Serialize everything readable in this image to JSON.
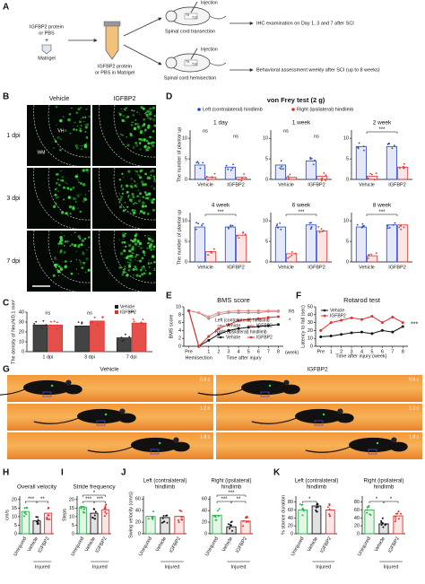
{
  "panel_labels": [
    "A",
    "B",
    "C",
    "D",
    "E",
    "F",
    "G",
    "H",
    "I",
    "J",
    "K"
  ],
  "schematic": {
    "protein_lines": [
      "IGFBP2 protein",
      "or PBS"
    ],
    "plus": "+",
    "matrigel": "Matrigel",
    "mix_lines": [
      "IGFBP2 protein",
      "or PBS in Matrigel"
    ],
    "injection": "Injection",
    "vertebrae": [
      "T9",
      "T10"
    ],
    "procedures": [
      "Spinal cord transection",
      "Spinal cord hemisection"
    ],
    "outcomes": [
      "IHC examination on Day 1, 3 and 7 after SCI",
      "Behavioral assessment weekly after SCI (up to 8 weeks)"
    ]
  },
  "images_b": {
    "columns": [
      "Vehicle",
      "IGFBP2"
    ],
    "rows": [
      "1 dpi",
      "3 dpi",
      "7 dpi"
    ],
    "regions": [
      "VH",
      "WM"
    ]
  },
  "images_g": {
    "columns": [
      "Vehicle",
      "IGFBP2"
    ],
    "times": [
      "0.6 s",
      "1.2 s",
      "1.8 s"
    ]
  },
  "chart_data": [
    {
      "type": "bar",
      "y_label": "The density of NeuN/0.1 mm²",
      "categories": [
        "1 dpi",
        "3 dpi",
        "7 dpi"
      ],
      "series": [
        {
          "name": "Vehicle",
          "color": "#222222",
          "values": [
            27,
            26,
            14
          ]
        },
        {
          "name": "IGFBP2",
          "color": "#e0302a",
          "values": [
            27,
            31,
            29
          ]
        }
      ],
      "ylim": [
        0,
        40
      ],
      "yticks": [
        0,
        10,
        20,
        30,
        40
      ],
      "annotations": [
        "ns",
        "ns",
        "***"
      ]
    },
    {
      "type": "bar",
      "title": "von Frey test (2 g)",
      "y_label": "The number of plantar up",
      "categories": [
        "Vehicle",
        "IGFBP2"
      ],
      "series": [
        {
          "name": "Left (contralateral) hindlimb",
          "color": "#2444c8"
        },
        {
          "name": "Right (ipsilateral) hindlimb",
          "color": "#e0302a"
        }
      ],
      "ylim": [
        0,
        12
      ],
      "yticks": [
        0,
        5,
        10
      ],
      "subplots": [
        {
          "title": "1 day",
          "values": [
            [
              3.5,
              3
            ],
            [
              0.5,
              0.5
            ]
          ],
          "annotations": [
            "ns",
            "ns"
          ]
        },
        {
          "title": "1 week",
          "values": [
            [
              3.5,
              4.5
            ],
            [
              0.5,
              0.8
            ]
          ],
          "annotations": [
            "ns",
            "ns"
          ]
        },
        {
          "title": "2 week",
          "values": [
            [
              8,
              8
            ],
            [
              0.8,
              3
            ]
          ],
          "annotations": [
            "***"
          ]
        },
        {
          "title": "4 week",
          "values": [
            [
              8.5,
              8.5
            ],
            [
              2.5,
              6.5
            ]
          ],
          "annotations": [
            "***"
          ]
        },
        {
          "title": "6 week",
          "values": [
            [
              8.5,
              9
            ],
            [
              2,
              7.5
            ]
          ],
          "annotations": [
            "***"
          ]
        },
        {
          "title": "8 week",
          "values": [
            [
              8.5,
              9
            ],
            [
              1.5,
              9
            ]
          ],
          "annotations": [
            "***"
          ]
        }
      ]
    },
    {
      "type": "line",
      "title": "BMS score",
      "y_label": "BMS score",
      "x_label": "Time after injury",
      "x_unit": "(week)",
      "x_annotation": "Hemisection",
      "categories": [
        "Pre",
        null,
        "1",
        "2",
        "3",
        "4",
        "5",
        "6",
        "7",
        "8"
      ],
      "legend_groups": [
        "Left (contralateral) hindlimb",
        "Right (ipsilateral) hindlimb"
      ],
      "series": [
        {
          "name": "Vehicle",
          "color": "#9a9a9a",
          "values": [
            9,
            8.5,
            7,
            8,
            8.5,
            8.5,
            8.5,
            8.5,
            8.8,
            8.8
          ]
        },
        {
          "name": "IGFBP2",
          "color": "#f08a8a",
          "values": [
            9,
            8.5,
            7.5,
            8.5,
            8.8,
            9,
            9,
            9,
            9,
            9
          ]
        },
        {
          "name": "Vehicle",
          "color": "#111111",
          "values": [
            9,
            0,
            1.5,
            3,
            4,
            4.5,
            4.8,
            5,
            5.2,
            5.5
          ]
        },
        {
          "name": "IGFBP2",
          "color": "#e0302a",
          "values": [
            9,
            0,
            2.5,
            4.5,
            5.5,
            6.5,
            6.8,
            7,
            7.3,
            7.5
          ]
        }
      ],
      "ylim": [
        0,
        10
      ],
      "yticks": [
        0,
        2,
        4,
        6,
        8,
        10
      ],
      "annotations": [
        "ns",
        "*"
      ]
    },
    {
      "type": "line",
      "title": "Rotarod test",
      "y_label": "Latency to fall (sec)",
      "x_label": "Time after injury (week)",
      "categories": [
        "Pre",
        "1",
        "2",
        "3",
        "4",
        "5",
        "6",
        "7",
        "8"
      ],
      "series": [
        {
          "name": "Vehicle",
          "color": "#111111",
          "values": [
            12,
            13,
            15,
            17,
            18,
            16,
            20,
            18,
            25
          ]
        },
        {
          "name": "IGFBP2",
          "color": "#e0302a",
          "values": [
            20,
            30,
            33,
            36,
            34,
            38,
            30,
            37,
            30
          ]
        }
      ],
      "ylim": [
        0,
        50
      ],
      "yticks": [
        0,
        10,
        20,
        30,
        40,
        50
      ],
      "annotations": [
        "***"
      ]
    },
    {
      "type": "bar",
      "title": "Overall velocity",
      "y_label": "cm/s",
      "categories": [
        "Uninjured",
        "Vehicle",
        "IGFBP2"
      ],
      "group_label": "Injured",
      "values": [
        13,
        7.5,
        12
      ],
      "colors": [
        "#2db34a",
        "#111111",
        "#e0302a"
      ],
      "ylim": [
        0,
        22
      ],
      "yticks": [
        0,
        5,
        10,
        15,
        20
      ],
      "annotations": [
        "***",
        "**"
      ]
    },
    {
      "type": "bar",
      "title": "Stride frequency",
      "y_label": "Steps",
      "categories": [
        "Uninjured",
        "Vehicle",
        "IGFBP2"
      ],
      "group_label": "Injured",
      "values": [
        15.5,
        12,
        14
      ],
      "colors": [
        "#2db34a",
        "#111111",
        "#e0302a"
      ],
      "ylim": [
        0,
        22
      ],
      "yticks": [
        0,
        5,
        10,
        15,
        20
      ],
      "annotations": [
        "***",
        "***",
        "*"
      ]
    },
    {
      "type": "bar",
      "title": [
        "Left (contralateral)",
        "hindlimb"
      ],
      "y_label": "Swing velocity (cm/s)",
      "categories": [
        "Uninjured",
        "Vehicle",
        "IGFBP2"
      ],
      "group_label": "Injured",
      "values": [
        30,
        28,
        30
      ],
      "colors": [
        "#2db34a",
        "#111111",
        "#e0302a"
      ],
      "ylim": [
        0,
        65
      ],
      "yticks": [
        0,
        20,
        40,
        60
      ],
      "annotations": []
    },
    {
      "type": "bar",
      "title": [
        "Right (ipsilateral)",
        "hindlimb"
      ],
      "y_label": "Swing velocity (cm/s)",
      "categories": [
        "Uninjured",
        "Vehicle",
        "IGFBP2"
      ],
      "group_label": "Injured",
      "values": [
        32,
        12,
        22
      ],
      "colors": [
        "#2db34a",
        "#111111",
        "#e0302a"
      ],
      "ylim": [
        0,
        65
      ],
      "yticks": [
        0,
        20,
        40,
        60
      ],
      "annotations": [
        "***",
        "**",
        "***"
      ]
    },
    {
      "type": "bar",
      "title": [
        "Left (contralateral)",
        "hindlimb"
      ],
      "y_label": "% stance duration",
      "categories": [
        "Uninjured",
        "Vehicle",
        "IGFBP2"
      ],
      "group_label": "Injured",
      "values": [
        60,
        70,
        60
      ],
      "colors": [
        "#2db34a",
        "#111111",
        "#e0302a"
      ],
      "ylim": [
        0,
        95
      ],
      "yticks": [
        0,
        20,
        40,
        60,
        80
      ],
      "annotations": [
        "*"
      ]
    },
    {
      "type": "bar",
      "title": [
        "Right (ipsilateral)",
        "hindlimb"
      ],
      "y_label": "% stance duration",
      "categories": [
        "Uninjured",
        "Vehicle",
        "IGFBP2"
      ],
      "group_label": "Injured",
      "values": [
        60,
        25,
        45
      ],
      "colors": [
        "#2db34a",
        "#111111",
        "#e0302a"
      ],
      "ylim": [
        0,
        95
      ],
      "yticks": [
        0,
        20,
        40,
        60,
        80
      ],
      "annotations": [
        "*",
        "*"
      ]
    }
  ]
}
